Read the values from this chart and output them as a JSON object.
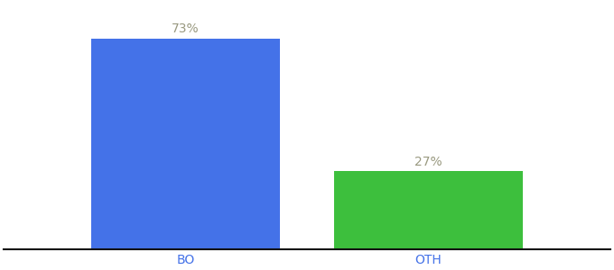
{
  "categories": [
    "BO",
    "OTH"
  ],
  "values": [
    73,
    27
  ],
  "bar_colors": [
    "#4472e8",
    "#3dbf3d"
  ],
  "label_texts": [
    "73%",
    "27%"
  ],
  "label_color": "#999980",
  "xlabel": "",
  "ylabel": "",
  "ylim": [
    0,
    85
  ],
  "bar_width": 0.28,
  "background_color": "#ffffff",
  "tick_color": "#4472e8",
  "axis_line_color": "#111111",
  "label_fontsize": 10,
  "tick_fontsize": 10,
  "x_positions": [
    0.32,
    0.68
  ],
  "xlim": [
    0.05,
    0.95
  ]
}
